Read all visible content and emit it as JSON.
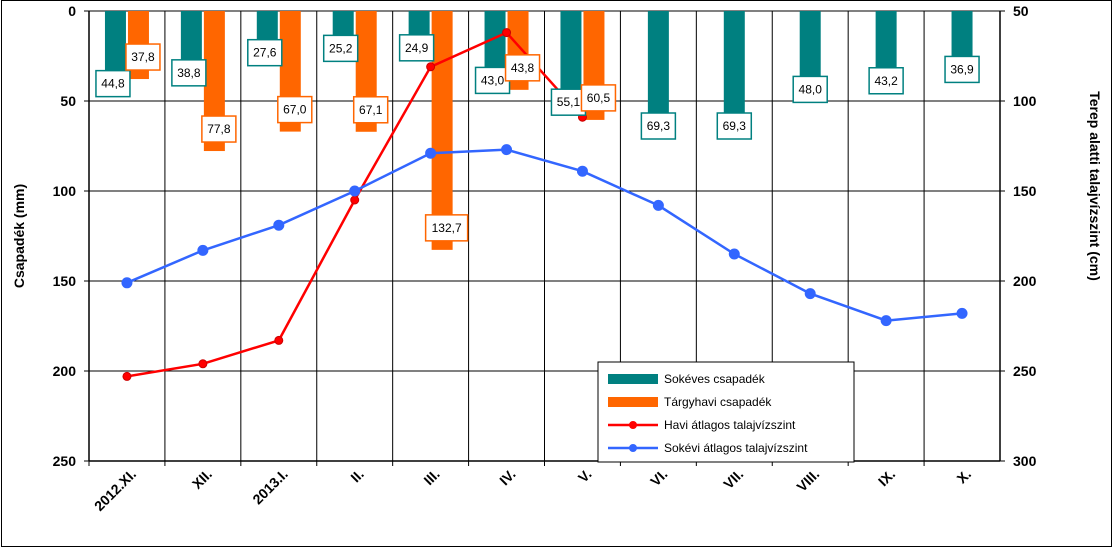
{
  "chart_data": {
    "type": "bar+line",
    "title": "",
    "categories": [
      "2012.XI.",
      "XII.",
      "2013.I.",
      "II.",
      "III.",
      "IV.",
      "V.",
      "VI.",
      "VII.",
      "VIII.",
      "IX.",
      "X."
    ],
    "y_left": {
      "label": "Csapadék (mm)",
      "range": [
        0,
        250
      ],
      "inverted": true,
      "ticks": [
        0,
        50,
        100,
        150,
        200,
        250
      ]
    },
    "y_right": {
      "label": "Terep alatti talajvízszint (cm)",
      "range": [
        50,
        300
      ],
      "inverted": true,
      "ticks": [
        50,
        100,
        150,
        200,
        250,
        300
      ]
    },
    "grid": true,
    "legend_position": "bottom-right",
    "series": [
      {
        "name": "Sokéves csapadék",
        "type": "bar",
        "axis": "left",
        "color": "#008080",
        "values": [
          44.8,
          38.8,
          27.6,
          25.2,
          24.9,
          43.0,
          55.1,
          69.3,
          69.3,
          48.0,
          43.2,
          36.9
        ],
        "labels": [
          "44,8",
          "38,8",
          "27,6",
          "25,2",
          "24,9",
          "43,0",
          "55,1",
          "69,3",
          "69,3",
          "48,0",
          "43,2",
          "36,9"
        ]
      },
      {
        "name": "Tárgyhavi csapadék",
        "type": "bar",
        "axis": "left",
        "color": "#ff6600",
        "values": [
          37.8,
          77.8,
          67.0,
          67.1,
          132.7,
          43.8,
          60.5,
          null,
          null,
          null,
          null,
          null
        ],
        "labels": [
          "37,8",
          "77,8",
          "67,0",
          "67,1",
          "132,7",
          "43,8",
          "60,5",
          "",
          "",
          "",
          "",
          ""
        ]
      },
      {
        "name": "Havi átlagos talajvízszint",
        "type": "line",
        "axis": "right",
        "color": "#ff0000",
        "values": [
          253,
          246,
          233,
          155,
          81,
          62,
          109,
          null,
          null,
          null,
          null,
          null
        ]
      },
      {
        "name": "Sokévi átlagos talajvízszint",
        "type": "line",
        "axis": "right",
        "color": "#3366ff",
        "values": [
          201,
          183,
          169,
          150,
          129,
          127,
          139,
          158,
          185,
          207,
          222,
          218
        ]
      }
    ]
  }
}
